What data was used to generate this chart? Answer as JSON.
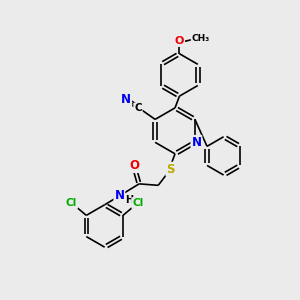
{
  "background_color": "#ebebeb",
  "bond_color": "#000000",
  "atom_colors": {
    "N": "#0000ee",
    "O": "#ee0000",
    "S": "#bbaa00",
    "Cl": "#00aa00",
    "C_label": "#000000",
    "H": "#000000"
  },
  "figsize": [
    3.0,
    3.0
  ],
  "dpi": 100
}
